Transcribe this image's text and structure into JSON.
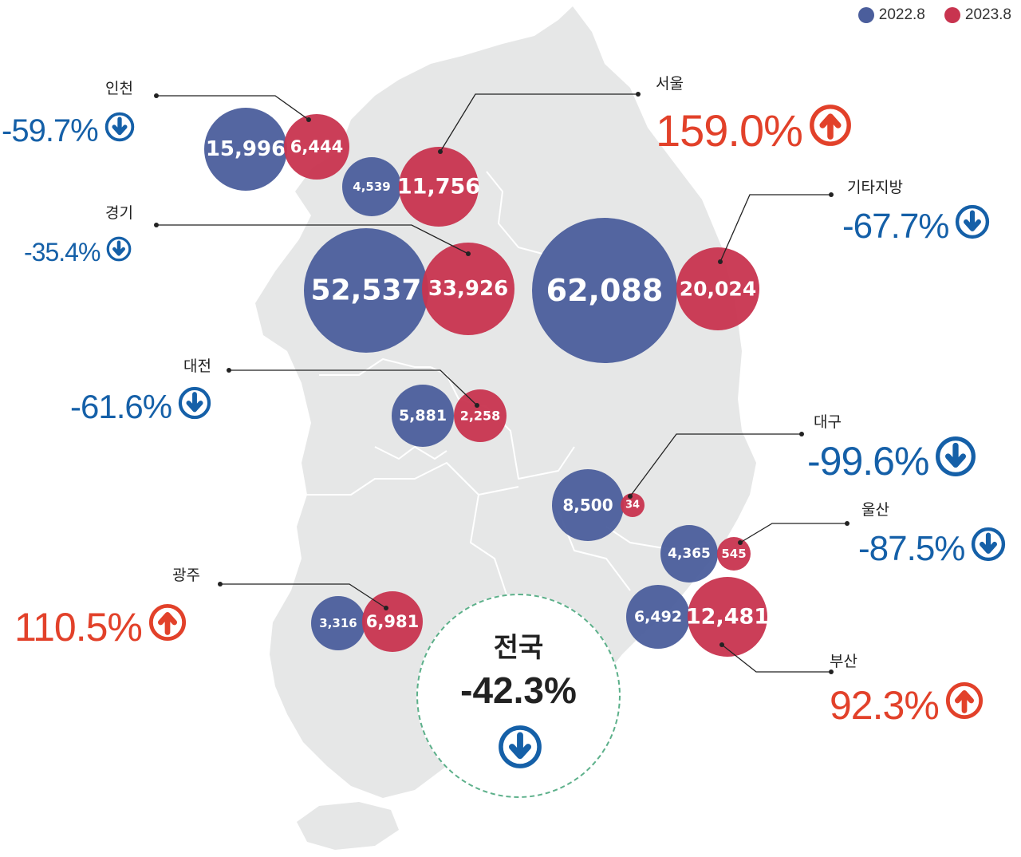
{
  "legend": [
    {
      "label": "2022.8",
      "color": "#4b5e9c"
    },
    {
      "label": "2023.8",
      "color": "#c8344f"
    }
  ],
  "colors": {
    "series_2022": "#4b5e9c",
    "series_2023": "#c8344f",
    "decrease": "#1560a8",
    "increase": "#e2412a",
    "map_fill": "#e6e7e7",
    "national_border": "#5cb08a"
  },
  "regions": [
    {
      "name": "인천",
      "v2022": "15,996",
      "v2023": "6,444",
      "change": "-59.7%",
      "direction": "down",
      "icon": "arrow-down-circle-icon"
    },
    {
      "name": "서울",
      "v2022": "4,539",
      "v2023": "11,756",
      "change": "159.0%",
      "direction": "up",
      "icon": "arrow-up-circle-icon"
    },
    {
      "name": "경기",
      "v2022": "52,537",
      "v2023": "33,926",
      "change": "-35.4%",
      "direction": "down",
      "icon": "arrow-down-circle-icon"
    },
    {
      "name": "기타지방",
      "v2022": "62,088",
      "v2023": "20,024",
      "change": "-67.7%",
      "direction": "down",
      "icon": "arrow-down-circle-icon"
    },
    {
      "name": "대전",
      "v2022": "5,881",
      "v2023": "2,258",
      "change": "-61.6%",
      "direction": "down",
      "icon": "arrow-down-circle-icon"
    },
    {
      "name": "대구",
      "v2022": "8,500",
      "v2023": "34",
      "change": "-99.6%",
      "direction": "down",
      "icon": "arrow-down-circle-icon"
    },
    {
      "name": "울산",
      "v2022": "4,365",
      "v2023": "545",
      "change": "-87.5%",
      "direction": "down",
      "icon": "arrow-down-circle-icon"
    },
    {
      "name": "광주",
      "v2022": "3,316",
      "v2023": "6,981",
      "change": "110.5%",
      "direction": "up",
      "icon": "arrow-up-circle-icon"
    },
    {
      "name": "부산",
      "v2022": "6,492",
      "v2023": "12,481",
      "change": "92.3%",
      "direction": "up",
      "icon": "arrow-up-circle-icon"
    }
  ],
  "national": {
    "name": "전국",
    "change": "-42.3%",
    "direction": "down",
    "icon": "arrow-down-circle-icon"
  }
}
